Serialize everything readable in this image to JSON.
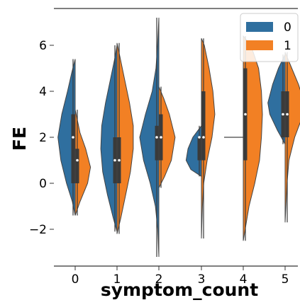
{
  "chart_data": {
    "type": "violin",
    "xlabel": "symptom_count",
    "ylabel": "FE",
    "categories": [
      "0",
      "1",
      "2",
      "3",
      "4",
      "5"
    ],
    "ylim": [
      -3.6,
      7.6
    ],
    "yticks": [
      -2,
      0,
      2,
      4,
      6
    ],
    "ytick_labels": [
      "−2",
      "0",
      "2",
      "4",
      "6"
    ],
    "split": true,
    "inner": "box",
    "legend": {
      "position": "top-right",
      "entries": [
        "0",
        "1"
      ]
    },
    "series": [
      {
        "name": "0",
        "color": "#2f6f9f",
        "groups": [
          {
            "category": "0",
            "min": -1.4,
            "max": 5.4,
            "mode": 2.0,
            "q1": 0.0,
            "median": 2.0,
            "q3": 3.0,
            "profile": [
              [
                -1.4,
                0.0
              ],
              [
                -0.8,
                0.15
              ],
              [
                0.0,
                0.45
              ],
              [
                1.0,
                0.75
              ],
              [
                2.0,
                0.9
              ],
              [
                3.0,
                0.7
              ],
              [
                4.0,
                0.4
              ],
              [
                4.8,
                0.18
              ],
              [
                5.4,
                0.0
              ]
            ]
          },
          {
            "category": "1",
            "min": -2.1,
            "max": 6.0,
            "mode": 2.0,
            "q1": 0.0,
            "median": 1.0,
            "q3": 2.0,
            "profile": [
              [
                -2.1,
                0.0
              ],
              [
                -1.5,
                0.2
              ],
              [
                -0.5,
                0.5
              ],
              [
                0.5,
                0.75
              ],
              [
                1.5,
                0.85
              ],
              [
                2.5,
                0.8
              ],
              [
                3.5,
                0.6
              ],
              [
                4.5,
                0.35
              ],
              [
                5.5,
                0.1
              ],
              [
                6.0,
                0.0
              ]
            ]
          },
          {
            "category": "2",
            "min": -3.2,
            "max": 7.2,
            "mode": 2.0,
            "q1": 1.0,
            "median": 2.0,
            "q3": 2.5,
            "profile": [
              [
                -3.2,
                0.0
              ],
              [
                -2.0,
                0.06
              ],
              [
                -1.0,
                0.18
              ],
              [
                0.0,
                0.45
              ],
              [
                1.0,
                0.8
              ],
              [
                2.0,
                1.0
              ],
              [
                3.0,
                0.7
              ],
              [
                4.0,
                0.35
              ],
              [
                5.0,
                0.15
              ],
              [
                6.0,
                0.07
              ],
              [
                7.2,
                0.0
              ]
            ]
          },
          {
            "category": "3",
            "min": 0.3,
            "max": 2.5,
            "mode": 1.0,
            "q1": 1.0,
            "median": 2.0,
            "q3": 2.0,
            "profile": [
              [
                0.3,
                0.0
              ],
              [
                0.6,
                0.55
              ],
              [
                1.0,
                0.8
              ],
              [
                1.5,
                0.7
              ],
              [
                2.0,
                0.45
              ],
              [
                2.5,
                0.0
              ]
            ]
          },
          {
            "category": "4",
            "min": 2.0,
            "max": 2.0,
            "mode": 2.0,
            "q1": 2.0,
            "median": 2.0,
            "q3": 2.0,
            "profile": [
              [
                2.0,
                0.0
              ]
            ]
          },
          {
            "category": "5",
            "min": 1.7,
            "max": 5.6,
            "mode": 3.5,
            "q1": 2.0,
            "median": 3.0,
            "q3": 4.0,
            "profile": [
              [
                1.7,
                0.0
              ],
              [
                2.3,
                0.4
              ],
              [
                3.0,
                0.8
              ],
              [
                3.5,
                0.9
              ],
              [
                4.3,
                0.65
              ],
              [
                5.0,
                0.35
              ],
              [
                5.6,
                0.0
              ]
            ]
          }
        ]
      },
      {
        "name": "1",
        "color": "#f28024",
        "groups": [
          {
            "category": "0",
            "min": -1.4,
            "max": 3.2,
            "mode": 0.7,
            "q1": 0.0,
            "median": 1.0,
            "q3": 1.5,
            "profile": [
              [
                -1.4,
                0.0
              ],
              [
                -0.8,
                0.25
              ],
              [
                0.0,
                0.65
              ],
              [
                0.7,
                0.8
              ],
              [
                1.5,
                0.55
              ],
              [
                2.2,
                0.25
              ],
              [
                3.2,
                0.0
              ]
            ]
          },
          {
            "category": "1",
            "min": -2.2,
            "max": 6.1,
            "mode": 2.0,
            "q1": 0.0,
            "median": 1.0,
            "q3": 2.0,
            "profile": [
              [
                -2.2,
                0.0
              ],
              [
                -1.5,
                0.2
              ],
              [
                -0.5,
                0.45
              ],
              [
                0.5,
                0.7
              ],
              [
                1.5,
                0.85
              ],
              [
                2.5,
                0.85
              ],
              [
                3.5,
                0.65
              ],
              [
                4.5,
                0.4
              ],
              [
                5.5,
                0.15
              ],
              [
                6.1,
                0.0
              ]
            ]
          },
          {
            "category": "2",
            "min": -0.2,
            "max": 4.2,
            "mode": 2.0,
            "q1": 1.0,
            "median": 2.0,
            "q3": 3.0,
            "profile": [
              [
                -0.2,
                0.0
              ],
              [
                0.3,
                0.3
              ],
              [
                1.0,
                0.65
              ],
              [
                2.0,
                0.85
              ],
              [
                3.0,
                0.55
              ],
              [
                3.7,
                0.25
              ],
              [
                4.2,
                0.0
              ]
            ]
          },
          {
            "category": "3",
            "min": -2.4,
            "max": 6.3,
            "mode": 2.5,
            "q1": 1.0,
            "median": 2.0,
            "q3": 4.0,
            "profile": [
              [
                -2.4,
                0.0
              ],
              [
                -1.0,
                0.05
              ],
              [
                0.0,
                0.12
              ],
              [
                1.0,
                0.3
              ],
              [
                2.0,
                0.55
              ],
              [
                3.0,
                0.7
              ],
              [
                4.0,
                0.6
              ],
              [
                5.0,
                0.4
              ],
              [
                6.0,
                0.15
              ],
              [
                6.3,
                0.0
              ]
            ]
          },
          {
            "category": "4",
            "min": -2.5,
            "max": 6.4,
            "mode": 3.0,
            "q1": 1.0,
            "median": 3.0,
            "q3": 5.0,
            "profile": [
              [
                -2.5,
                0.0
              ],
              [
                -1.0,
                0.3
              ],
              [
                0.0,
                0.6
              ],
              [
                1.0,
                0.85
              ],
              [
                2.0,
                0.95
              ],
              [
                3.0,
                1.0
              ],
              [
                4.0,
                0.95
              ],
              [
                5.0,
                0.8
              ],
              [
                6.0,
                0.4
              ],
              [
                6.4,
                0.0
              ]
            ]
          },
          {
            "category": "5",
            "min": -1.7,
            "max": 5.7,
            "mode": 3.5,
            "q1": 2.0,
            "median": 3.0,
            "q3": 4.0,
            "profile": [
              [
                -1.7,
                0.0
              ],
              [
                0.0,
                0.1
              ],
              [
                1.0,
                0.2
              ],
              [
                2.0,
                0.5
              ],
              [
                3.0,
                0.95
              ],
              [
                3.5,
                1.0
              ],
              [
                4.3,
                0.7
              ],
              [
                5.0,
                0.35
              ],
              [
                5.7,
                0.0
              ]
            ]
          }
        ]
      }
    ]
  }
}
